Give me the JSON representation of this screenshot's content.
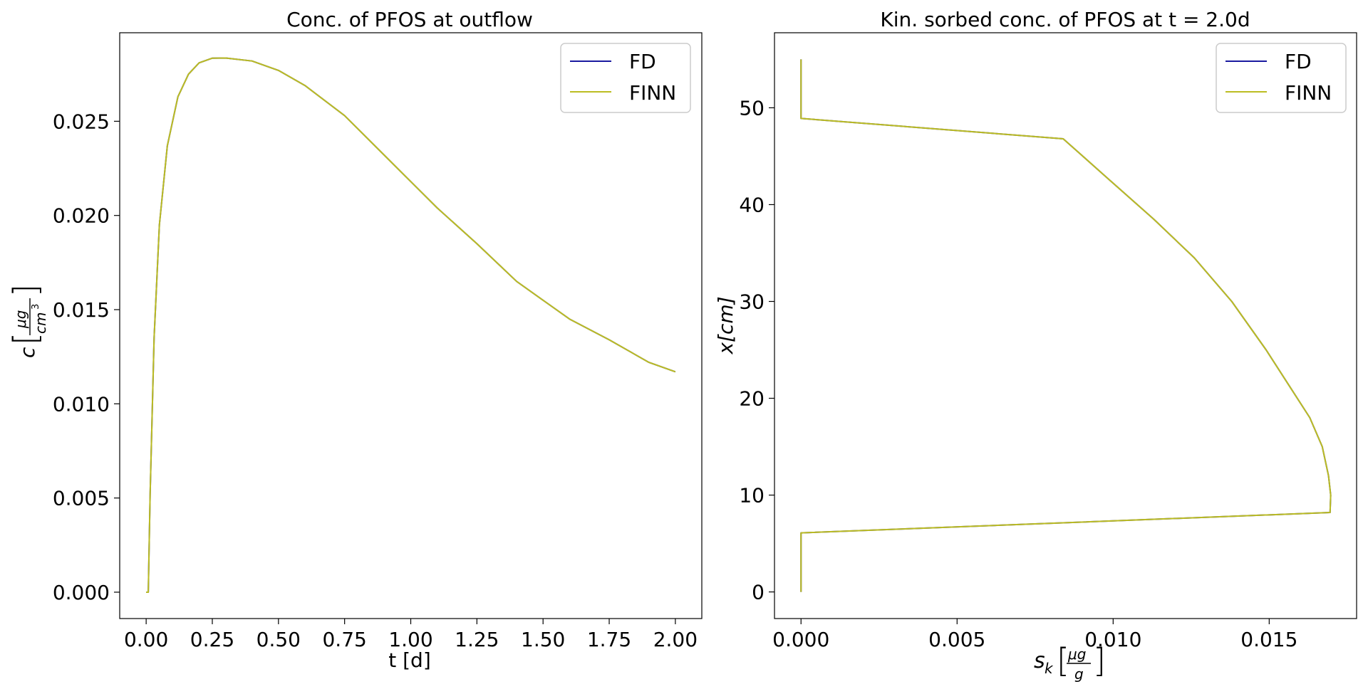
{
  "chart_data": [
    {
      "type": "line",
      "title": "Conc. of PFOS at outflow",
      "xlabel": "t [d]",
      "ylabel": "c [μg/cm³]",
      "xlim": [
        -0.1,
        2.1
      ],
      "ylim": [
        -0.0014,
        0.0297
      ],
      "xticks": [
        "0.00",
        "0.25",
        "0.50",
        "0.75",
        "1.00",
        "1.25",
        "1.50",
        "1.75",
        "2.00"
      ],
      "xtick_values": [
        0,
        0.25,
        0.5,
        0.75,
        1.0,
        1.25,
        1.5,
        1.75,
        2.0
      ],
      "yticks": [
        "0.000",
        "0.005",
        "0.010",
        "0.015",
        "0.020",
        "0.025"
      ],
      "ytick_values": [
        0,
        0.005,
        0.01,
        0.015,
        0.02,
        0.025
      ],
      "grid": false,
      "legend_position": "top-right",
      "series": [
        {
          "name": "FD",
          "color": "#1a1aa0",
          "x": [
            0,
            0.008,
            0.015,
            0.03,
            0.05,
            0.08,
            0.12,
            0.16,
            0.2,
            0.25,
            0.3,
            0.4,
            0.5,
            0.6,
            0.75,
            0.9,
            1.0,
            1.1,
            1.25,
            1.4,
            1.5,
            1.6,
            1.75,
            1.9,
            2.0
          ],
          "y": [
            0.0,
            0.0,
            0.0052,
            0.0135,
            0.0195,
            0.0237,
            0.0263,
            0.0275,
            0.0281,
            0.02835,
            0.02836,
            0.0282,
            0.0277,
            0.0269,
            0.0253,
            0.0232,
            0.0218,
            0.0204,
            0.0185,
            0.0165,
            0.0155,
            0.0145,
            0.0134,
            0.0122,
            0.0117
          ]
        },
        {
          "name": "FINN",
          "color": "#bcbd22",
          "x": [
            0,
            0.008,
            0.015,
            0.03,
            0.05,
            0.08,
            0.12,
            0.16,
            0.2,
            0.25,
            0.3,
            0.4,
            0.5,
            0.6,
            0.75,
            0.9,
            1.0,
            1.1,
            1.25,
            1.4,
            1.5,
            1.6,
            1.75,
            1.9,
            2.0
          ],
          "y": [
            0.0,
            0.0,
            0.0052,
            0.0135,
            0.0195,
            0.0237,
            0.0263,
            0.0275,
            0.0281,
            0.02835,
            0.02836,
            0.0282,
            0.0277,
            0.0269,
            0.0253,
            0.0232,
            0.0218,
            0.0204,
            0.0185,
            0.0165,
            0.0155,
            0.0145,
            0.0134,
            0.0122,
            0.0117
          ]
        }
      ]
    },
    {
      "type": "line",
      "title": "Kin. sorbed conc. of PFOS at t = 2.0d",
      "xlabel": "s_k [μg/g]",
      "ylabel": "x[cm]",
      "xlim": [
        -0.00085,
        0.0178
      ],
      "ylim": [
        -2.75,
        57.75
      ],
      "xticks": [
        "0.000",
        "0.005",
        "0.010",
        "0.015"
      ],
      "xtick_values": [
        0,
        0.005,
        0.01,
        0.015
      ],
      "yticks": [
        "0",
        "10",
        "20",
        "30",
        "40",
        "50"
      ],
      "ytick_values": [
        0,
        10,
        20,
        30,
        40,
        50
      ],
      "grid": false,
      "legend_position": "top-right",
      "series": [
        {
          "name": "FD",
          "color": "#1a1aa0",
          "x": [
            0,
            0,
            0.01695,
            0.01697,
            0.0169,
            0.0167,
            0.0163,
            0.0157,
            0.0149,
            0.0138,
            0.0126,
            0.0113,
            0.0099,
            0.0084,
            0,
            0
          ],
          "y": [
            0,
            6.1,
            8.2,
            10.0,
            12.0,
            15.0,
            18.0,
            21.0,
            25.0,
            30.0,
            34.5,
            38.5,
            42.5,
            46.8,
            48.9,
            55.0
          ]
        },
        {
          "name": "FINN",
          "color": "#bcbd22",
          "x": [
            0,
            0,
            0.01695,
            0.01697,
            0.0169,
            0.0167,
            0.0163,
            0.0157,
            0.0149,
            0.0138,
            0.0126,
            0.0113,
            0.0099,
            0.0084,
            0,
            0
          ],
          "y": [
            0,
            6.1,
            8.2,
            10.0,
            12.0,
            15.0,
            18.0,
            21.0,
            25.0,
            30.0,
            34.5,
            38.5,
            42.5,
            46.8,
            48.9,
            55.0
          ]
        }
      ]
    }
  ]
}
